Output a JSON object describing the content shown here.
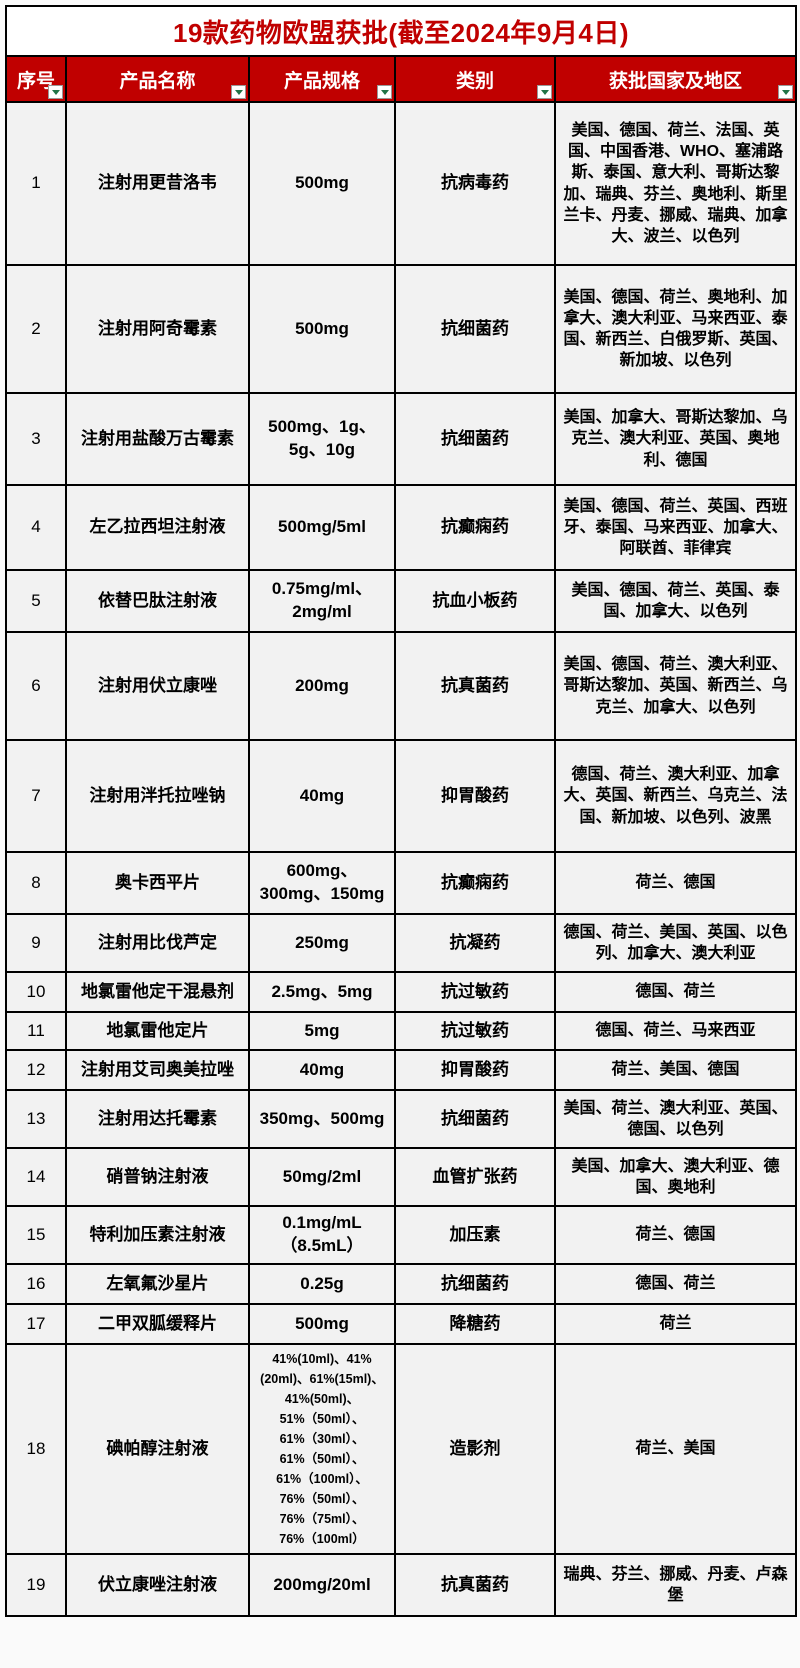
{
  "title": "19款药物欧盟获批(截至2024年9月4日)",
  "columns": [
    "序号",
    "产品名称",
    "产品规格",
    "类别",
    "获批国家及地区"
  ],
  "rows": [
    {
      "no": "1",
      "name": "注射用更昔洛韦",
      "spec": "500mg",
      "category": "抗病毒药",
      "regions": "美国、德国、荷兰、法国、英国、中国香港、WHO、塞浦路斯、泰国、意大利、哥斯达黎加、瑞典、芬兰、奥地利、斯里兰卡、丹麦、挪威、瑞典、加拿大、波兰、以色列"
    },
    {
      "no": "2",
      "name": "注射用阿奇霉素",
      "spec": "500mg",
      "category": "抗细菌药",
      "regions": "美国、德国、荷兰、奥地利、加拿大、澳大利亚、马来西亚、泰国、新西兰、白俄罗斯、英国、新加坡、以色列"
    },
    {
      "no": "3",
      "name": "注射用盐酸万古霉素",
      "spec": "500mg、1g、5g、10g",
      "category": "抗细菌药",
      "regions": "美国、加拿大、哥斯达黎加、乌克兰、澳大利亚、英国、奥地利、德国"
    },
    {
      "no": "4",
      "name": "左乙拉西坦注射液",
      "spec": "500mg/5ml",
      "category": "抗癫痫药",
      "regions": "美国、德国、荷兰、英国、西班牙、泰国、马来西亚、加拿大、阿联酋、菲律宾"
    },
    {
      "no": "5",
      "name": "依替巴肽注射液",
      "spec": "0.75mg/ml、2mg/ml",
      "category": "抗血小板药",
      "regions": "美国、德国、荷兰、英国、泰国、加拿大、以色列"
    },
    {
      "no": "6",
      "name": "注射用伏立康唑",
      "spec": "200mg",
      "category": "抗真菌药",
      "regions": "美国、德国、荷兰、澳大利亚、哥斯达黎加、英国、新西兰、乌克兰、加拿大、以色列"
    },
    {
      "no": "7",
      "name": "注射用泮托拉唑钠",
      "spec": "40mg",
      "category": "抑胃酸药",
      "regions": "德国、荷兰、澳大利亚、加拿大、英国、新西兰、乌克兰、法国、新加坡、以色列、波黑"
    },
    {
      "no": "8",
      "name": "奥卡西平片",
      "spec": "600mg、300mg、150mg",
      "category": "抗癫痫药",
      "regions": "荷兰、德国"
    },
    {
      "no": "9",
      "name": "注射用比伐芦定",
      "spec": "250mg",
      "category": "抗凝药",
      "regions": "德国、荷兰、美国、英国、以色列、加拿大、澳大利亚"
    },
    {
      "no": "10",
      "name": "地氯雷他定干混悬剂",
      "spec": "2.5mg、5mg",
      "category": "抗过敏药",
      "regions": "德国、荷兰"
    },
    {
      "no": "11",
      "name": "地氯雷他定片",
      "spec": "5mg",
      "category": "抗过敏药",
      "regions": "德国、荷兰、马来西亚"
    },
    {
      "no": "12",
      "name": "注射用艾司奥美拉唑",
      "spec": "40mg",
      "category": "抑胃酸药",
      "regions": "荷兰、美国、德国"
    },
    {
      "no": "13",
      "name": "注射用达托霉素",
      "spec": "350mg、500mg",
      "category": "抗细菌药",
      "regions": "美国、荷兰、澳大利亚、英国、德国、以色列"
    },
    {
      "no": "14",
      "name": "硝普钠注射液",
      "spec": "50mg/2ml",
      "category": "血管扩张药",
      "regions": "美国、加拿大、澳大利亚、德国、奥地利"
    },
    {
      "no": "15",
      "name": "特利加压素注射液",
      "spec": "0.1mg/mL（8.5mL）",
      "category": "加压素",
      "regions": "荷兰、德国"
    },
    {
      "no": "16",
      "name": "左氧氟沙星片",
      "spec": "0.25g",
      "category": "抗细菌药",
      "regions": "德国、荷兰"
    },
    {
      "no": "17",
      "name": "二甲双胍缓释片",
      "spec": "500mg",
      "category": "降糖药",
      "regions": "荷兰"
    },
    {
      "no": "18",
      "name": "碘帕醇注射液",
      "spec": "41%(10ml)、41%(20ml)、61%(15ml)、41%(50ml)、51%（50ml）、61%（30ml）、61%（50ml）、61%（100ml）、76%（50ml）、76%（75ml）、76%（100ml）",
      "category": "造影剂",
      "regions": "荷兰、美国"
    },
    {
      "no": "19",
      "name": "伏立康唑注射液",
      "spec": "200mg/20ml",
      "category": "抗真菌药",
      "regions": "瑞典、芬兰、挪威、丹麦、卢森堡"
    }
  ],
  "colors": {
    "header_bg": "#C00000",
    "title_color": "#C00000",
    "cell_bg": "#F2F2F2",
    "border": "#000000",
    "filter_triangle": "#217346"
  },
  "icons": {
    "filter": "filter-dropdown-icon"
  }
}
